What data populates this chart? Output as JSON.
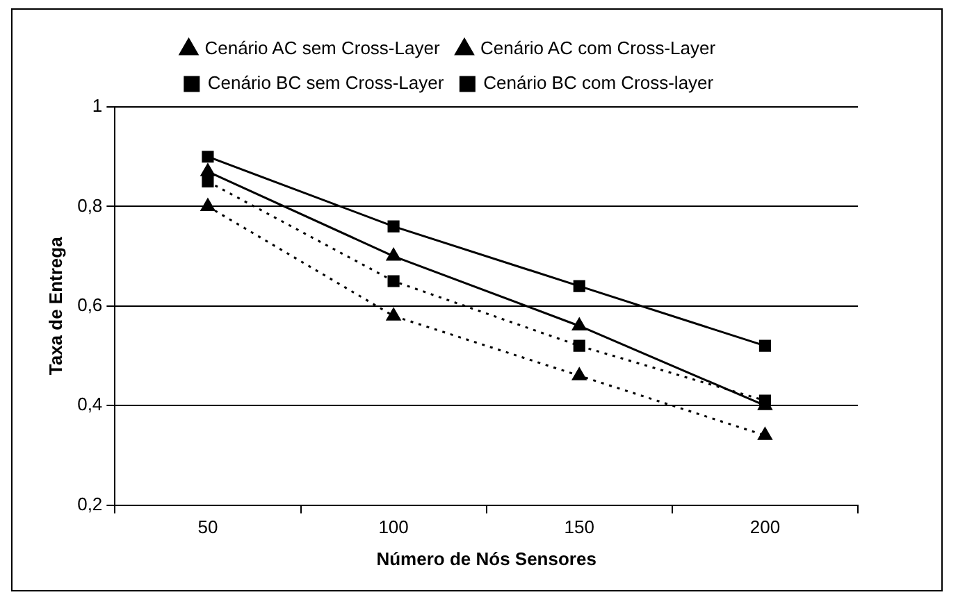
{
  "chart_data": {
    "type": "line",
    "xlabel": "Número de Nós Sensores",
    "ylabel": "Taxa de Entrega",
    "categories": [
      "50",
      "100",
      "150",
      "200"
    ],
    "series": [
      {
        "name": "Cenário AC sem Cross-Layer",
        "color": "#000000",
        "values": [
          0.8,
          0.58,
          0.46,
          0.34
        ],
        "marker": "triangle",
        "line_style": "dotted"
      },
      {
        "name": "Cenário AC com Cross-Layer",
        "color": "#000000",
        "values": [
          0.87,
          0.7,
          0.56,
          0.4
        ],
        "marker": "triangle",
        "line_style": "solid"
      },
      {
        "name": "Cenário BC sem Cross-Layer",
        "color": "#000000",
        "values": [
          0.85,
          0.65,
          0.52,
          0.41
        ],
        "marker": "square",
        "line_style": "dotted"
      },
      {
        "name": "Cenário BC com Cross-layer",
        "color": "#000000",
        "values": [
          0.9,
          0.76,
          0.64,
          0.52
        ],
        "marker": "square",
        "line_style": "solid"
      }
    ],
    "ylim": [
      0.2,
      1
    ],
    "yticks": [
      {
        "value": 0.2,
        "label": "0,2"
      },
      {
        "value": 0.4,
        "label": "0,4"
      },
      {
        "value": 0.6,
        "label": "0,6"
      },
      {
        "value": 0.8,
        "label": "0,8"
      },
      1
    ],
    "grid": "y",
    "legend": "top"
  }
}
